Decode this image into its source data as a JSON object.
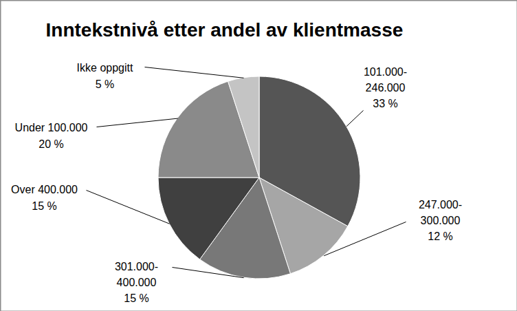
{
  "chart_data": {
    "type": "pie",
    "title": "Inntekstnivå etter andel av klientmasse",
    "categories": [
      "101.000-246.000",
      "247.000-300.000",
      "301.000-400.000",
      "Over 400.000",
      "Under 100.000",
      "Ikke oppgitt"
    ],
    "values": [
      33,
      12,
      15,
      15,
      20,
      5
    ],
    "value_labels": [
      "33 %",
      "12 %",
      "15 %",
      "15 %",
      "20 %",
      "5 %"
    ],
    "colors": [
      "#555555",
      "#a6a6a6",
      "#787878",
      "#404040",
      "#8a8a8a",
      "#c4c4c4"
    ],
    "data_labels": true
  }
}
